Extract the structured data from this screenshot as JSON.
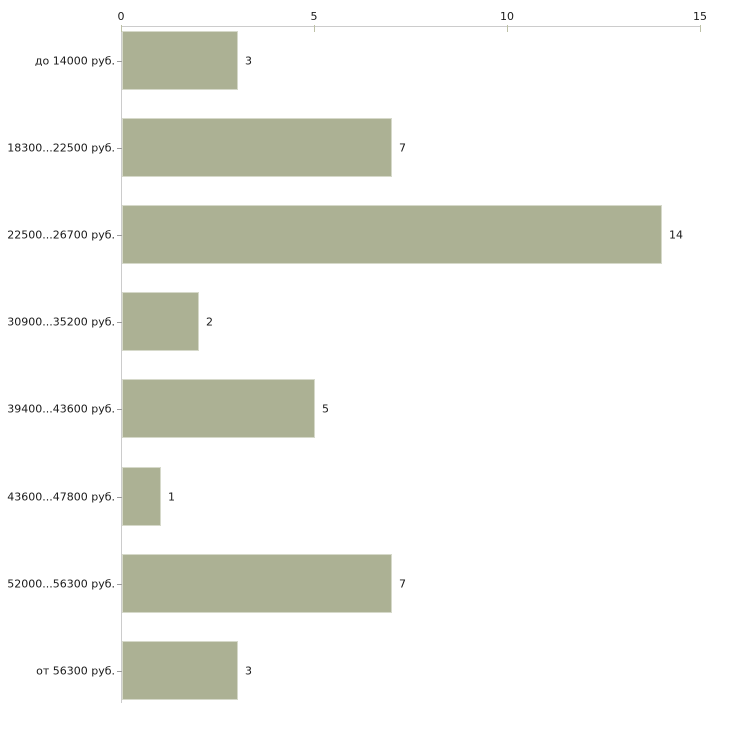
{
  "chart_data": {
    "type": "bar",
    "orientation": "horizontal",
    "title": "",
    "xlabel": "",
    "ylabel": "",
    "categories": [
      "до 14000 руб.",
      "18300...22500 руб.",
      "22500...26700 руб.",
      "30900...35200 руб.",
      "39400...43600 руб.",
      "43600...47800 руб.",
      "52000...56300 руб.",
      "от 56300 руб."
    ],
    "values": [
      3,
      7,
      14,
      2,
      5,
      1,
      7,
      3
    ],
    "value_labels_shown": true,
    "x_ticks": [
      0,
      5,
      10,
      15
    ],
    "xlim": [
      0,
      15
    ],
    "grid": false,
    "legend": "none",
    "axis_position": "top",
    "bar_color": "#acb194",
    "bar_border_color": "#d6d9ca",
    "axis_line_color": "#cccccc",
    "axis_tick_color": "#bdc1a6",
    "category_tick_color": "#9c9c9c",
    "text_color": "#1a1a1a"
  }
}
